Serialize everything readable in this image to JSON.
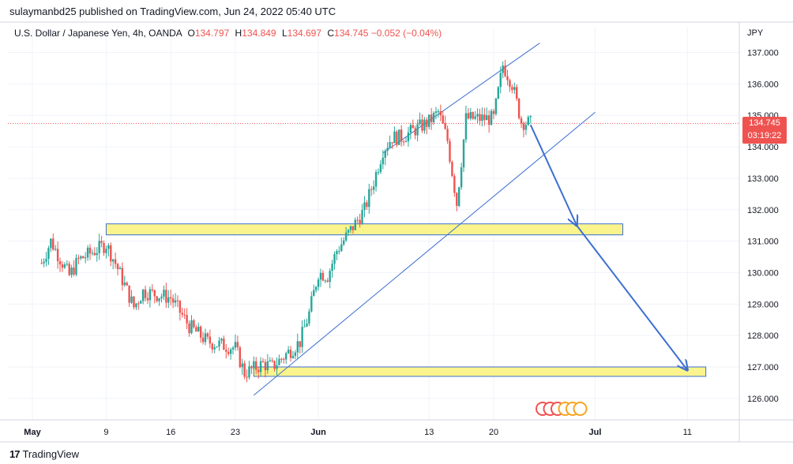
{
  "header": {
    "published_by": "sulaymanbd25 published on TradingView.com, Jun 24, 2022 05:40 UTC"
  },
  "symbol": {
    "name": "U.S. Dollar / Japanese Yen, 4h, OANDA",
    "open_label": "O",
    "open": "134.797",
    "high_label": "H",
    "high": "134.849",
    "low_label": "L",
    "low": "134.697",
    "close_label": "C",
    "close": "134.745",
    "change": "−0.052 (−0.04%)"
  },
  "price_tag": {
    "price": "134.745",
    "countdown": "03:19:22"
  },
  "footer": {
    "brand": "TradingView",
    "brand_mark": "17"
  },
  "colors": {
    "up": "#26a69a",
    "down": "#ef5350",
    "trendline": "#3d6fd1",
    "zone_fill": "#fbf48c",
    "zone_border": "#3d6fd1",
    "arrow": "#3d6fd1",
    "event_icons": "#f5a623"
  },
  "chart_data": {
    "type": "candlestick",
    "currency_label": "JPY",
    "y_ticks": [
      "137.000",
      "136.000",
      "135.000",
      "134.000",
      "133.000",
      "132.000",
      "131.000",
      "130.000",
      "129.000",
      "128.000",
      "127.000",
      "126.000"
    ],
    "ylim": [
      125.6,
      137.9
    ],
    "x_ticks": [
      "May",
      "9",
      "16",
      "23",
      "Jun",
      "13",
      "20",
      "Jul",
      "11"
    ],
    "last_price": 134.745,
    "path": [
      [
        "May 2",
        130.3
      ],
      [
        "May 3",
        131.0
      ],
      [
        "May 5",
        129.9
      ],
      [
        "May 6",
        130.4
      ],
      [
        "May 9",
        130.9
      ],
      [
        "May 10",
        130.3
      ],
      [
        "May 12",
        128.9
      ],
      [
        "May 13",
        129.4
      ],
      [
        "May 16",
        129.2
      ],
      [
        "May 18",
        128.3
      ],
      [
        "May 20",
        127.8
      ],
      [
        "May 23",
        127.6
      ],
      [
        "May 24",
        126.8
      ],
      [
        "May 26",
        127.1
      ],
      [
        "May 27",
        127.0
      ],
      [
        "May 30",
        127.8
      ],
      [
        "May 31",
        128.7
      ],
      [
        "Jun 1",
        130.0
      ],
      [
        "Jun 2",
        129.9
      ],
      [
        "Jun 3",
        130.7
      ],
      [
        "Jun 6",
        132.0
      ],
      [
        "Jun 7",
        132.9
      ],
      [
        "Jun 8",
        133.9
      ],
      [
        "Jun 9",
        134.3
      ],
      [
        "Jun 10",
        134.3
      ],
      [
        "Jun 13",
        134.8
      ],
      [
        "Jun 14",
        135.1
      ],
      [
        "Jun 15",
        134.2
      ],
      [
        "Jun 16",
        132.2
      ],
      [
        "Jun 17",
        134.9
      ],
      [
        "Jun 20",
        134.9
      ],
      [
        "Jun 21",
        136.6
      ],
      [
        "Jun 22",
        136.0
      ],
      [
        "Jun 23",
        134.8
      ],
      [
        "Jun 24",
        134.745
      ]
    ],
    "zones": [
      {
        "from": 131.2,
        "to": 131.55,
        "x_start": "May 9",
        "x_end": "Jul 4"
      },
      {
        "from": 126.7,
        "to": 127.0,
        "x_start": "May 25",
        "x_end": "Jul 13"
      }
    ],
    "trendlines": [
      {
        "from": [
          "Jun 8",
          133.8
        ],
        "to": [
          "Jun 25",
          137.3
        ]
      },
      {
        "from": [
          "May 25",
          126.1
        ],
        "to": [
          "Jul 1",
          135.1
        ]
      }
    ],
    "arrows": [
      {
        "from": [
          "Jun 24",
          134.7
        ],
        "to": [
          "Jun 29",
          131.5
        ]
      },
      {
        "from": [
          "Jun 29",
          131.5
        ],
        "to": [
          "Jul 11",
          126.9
        ]
      }
    ]
  }
}
